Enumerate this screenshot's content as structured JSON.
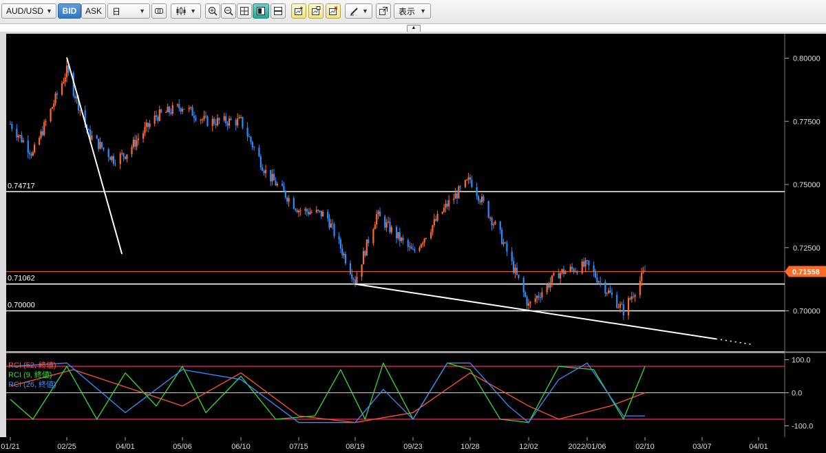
{
  "toolbar": {
    "symbol": "AUD/USD",
    "bid_label": "BID",
    "ask_label": "ASK",
    "period": "日",
    "display_label": "表示"
  },
  "chart_data": {
    "type": "candlestick",
    "symbol": "AUD/USD",
    "timeframe": "日",
    "current_price": "0.71558",
    "y_ticks": [
      "0.80000",
      "0.77500",
      "0.75000",
      "0.72500",
      "0.70000"
    ],
    "y_range": [
      0.6848,
      0.807
    ],
    "x_ticks": [
      "01/21",
      "02/25",
      "04/01",
      "05/06",
      "06/10",
      "07/15",
      "08/19",
      "09/23",
      "10/28",
      "12/02",
      "2022/01/06",
      "02/10",
      "03/07",
      "04/01"
    ],
    "horizontal_lines": [
      {
        "label": "0.74717",
        "value": 0.74717
      },
      {
        "label": "0.71062",
        "value": 0.71062
      },
      {
        "label": "0.70000",
        "value": 0.7
      }
    ],
    "price_path": [
      {
        "date": "01/21",
        "price": 0.774
      },
      {
        "date": "02/04",
        "price": 0.762
      },
      {
        "date": "02/25",
        "price": 0.795
      },
      {
        "date": "03/10",
        "price": 0.77
      },
      {
        "date": "03/25",
        "price": 0.76
      },
      {
        "date": "04/01",
        "price": 0.762
      },
      {
        "date": "04/20",
        "price": 0.777
      },
      {
        "date": "05/06",
        "price": 0.781
      },
      {
        "date": "05/20",
        "price": 0.775
      },
      {
        "date": "06/10",
        "price": 0.775
      },
      {
        "date": "06/25",
        "price": 0.755
      },
      {
        "date": "07/15",
        "price": 0.74
      },
      {
        "date": "08/01",
        "price": 0.738
      },
      {
        "date": "08/19",
        "price": 0.712
      },
      {
        "date": "09/01",
        "price": 0.738
      },
      {
        "date": "09/23",
        "price": 0.723
      },
      {
        "date": "10/14",
        "price": 0.742
      },
      {
        "date": "10/28",
        "price": 0.752
      },
      {
        "date": "11/15",
        "price": 0.73
      },
      {
        "date": "12/02",
        "price": 0.702
      },
      {
        "date": "12/20",
        "price": 0.715
      },
      {
        "date": "2022/01/06",
        "price": 0.718
      },
      {
        "date": "01/28",
        "price": 0.7
      },
      {
        "date": "02/10",
        "price": 0.7156
      }
    ],
    "trendlines": [
      {
        "name": "upper",
        "from": {
          "date": "02/25",
          "price": 0.8003
        },
        "to": {
          "date": "03/30",
          "price": 0.7225
        },
        "extension_dotted": true
      },
      {
        "name": "lower",
        "from": {
          "date": "08/19",
          "price": 0.7106
        },
        "to": {
          "date": "03/30",
          "price": 0.6866
        },
        "extension_dotted": true
      }
    ],
    "indicator": {
      "name": "RCI",
      "y_ticks": [
        "100.0",
        "0.0",
        "-100.0"
      ],
      "y_range": [
        -110,
        110
      ],
      "levels": [
        80,
        0,
        -80
      ],
      "series": [
        {
          "name": "RCI (52, 終値)",
          "color": "#ff5533",
          "values": [
            {
              "date": "01/21",
              "v": 20
            },
            {
              "date": "03/01",
              "v": 70
            },
            {
              "date": "05/06",
              "v": -40
            },
            {
              "date": "06/10",
              "v": 60
            },
            {
              "date": "07/15",
              "v": -70
            },
            {
              "date": "08/19",
              "v": -90
            },
            {
              "date": "09/23",
              "v": -60
            },
            {
              "date": "10/28",
              "v": 60
            },
            {
              "date": "12/02",
              "v": -40
            },
            {
              "date": "12/20",
              "v": -80
            },
            {
              "date": "01/20",
              "v": -40
            },
            {
              "date": "02/10",
              "v": 0
            }
          ]
        },
        {
          "name": "RCI (9, 終値)",
          "color": "#33dd33",
          "values": [
            {
              "date": "01/21",
              "v": -20
            },
            {
              "date": "02/04",
              "v": -80
            },
            {
              "date": "02/25",
              "v": 80
            },
            {
              "date": "03/15",
              "v": -80
            },
            {
              "date": "04/01",
              "v": 60
            },
            {
              "date": "04/20",
              "v": -40
            },
            {
              "date": "05/06",
              "v": 80
            },
            {
              "date": "05/20",
              "v": -60
            },
            {
              "date": "06/10",
              "v": 50
            },
            {
              "date": "07/01",
              "v": -80
            },
            {
              "date": "07/25",
              "v": -70
            },
            {
              "date": "08/10",
              "v": 70
            },
            {
              "date": "08/25",
              "v": -80
            },
            {
              "date": "09/05",
              "v": 90
            },
            {
              "date": "09/23",
              "v": -80
            },
            {
              "date": "10/14",
              "v": 90
            },
            {
              "date": "10/28",
              "v": 70
            },
            {
              "date": "11/15",
              "v": -80
            },
            {
              "date": "12/02",
              "v": -90
            },
            {
              "date": "12/20",
              "v": 80
            },
            {
              "date": "01/10",
              "v": 70
            },
            {
              "date": "01/28",
              "v": -80
            },
            {
              "date": "02/10",
              "v": 80
            }
          ]
        },
        {
          "name": "RCI (26, 終値)",
          "color": "#3a8cff",
          "values": [
            {
              "date": "01/21",
              "v": 80
            },
            {
              "date": "02/25",
              "v": 90
            },
            {
              "date": "04/01",
              "v": -60
            },
            {
              "date": "05/06",
              "v": 70
            },
            {
              "date": "06/10",
              "v": 40
            },
            {
              "date": "07/15",
              "v": -90
            },
            {
              "date": "08/19",
              "v": -90
            },
            {
              "date": "09/05",
              "v": 10
            },
            {
              "date": "09/23",
              "v": -80
            },
            {
              "date": "10/14",
              "v": 90
            },
            {
              "date": "10/28",
              "v": 90
            },
            {
              "date": "11/20",
              "v": -40
            },
            {
              "date": "12/02",
              "v": -90
            },
            {
              "date": "12/20",
              "v": 40
            },
            {
              "date": "01/06",
              "v": 90
            },
            {
              "date": "01/28",
              "v": -70
            },
            {
              "date": "02/10",
              "v": -70
            }
          ]
        }
      ]
    }
  }
}
